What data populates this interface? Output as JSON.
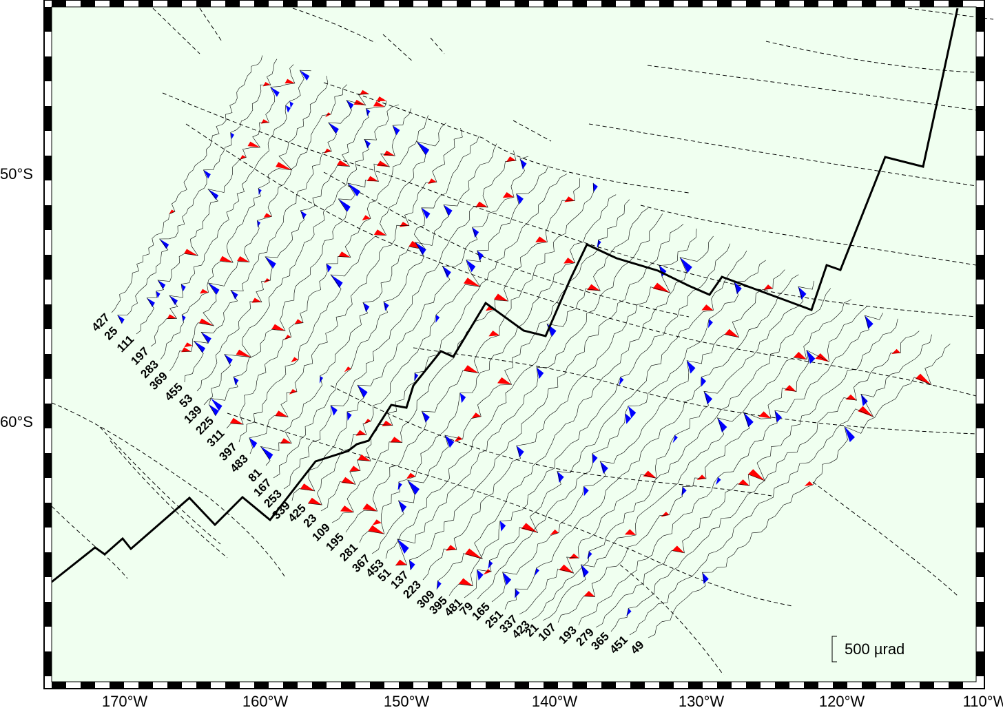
{
  "map": {
    "axes": {
      "x_ticks": [
        "170°W",
        "160°W",
        "150°W",
        "140°W",
        "130°W",
        "120°W",
        "110°W"
      ],
      "y_ticks": [
        "50°S",
        "60°S"
      ]
    },
    "scale_bar": {
      "label": "500 µrad",
      "value": 500,
      "unit": "µrad"
    },
    "track_numbers": [
      "427",
      "25",
      "111",
      "197",
      "283",
      "369",
      "455",
      "53",
      "139",
      "225",
      "311",
      "397",
      "483",
      "81",
      "167",
      "253",
      "339",
      "425",
      "23",
      "109",
      "195",
      "281",
      "367",
      "453",
      "51",
      "137",
      "223",
      "309",
      "395",
      "481",
      "79",
      "165",
      "251",
      "337",
      "423",
      "21",
      "107",
      "193",
      "279",
      "365",
      "451",
      "49"
    ],
    "colors": {
      "background": "#f0fff0",
      "positive": "#ff0000",
      "negative": "#0000ff",
      "ridge_line": "#000000",
      "fracture_zone": "#000000"
    },
    "features": {
      "ridge_axis": "solid",
      "fracture_zones": "dashed"
    }
  }
}
